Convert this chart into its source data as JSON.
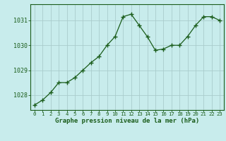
{
  "x": [
    0,
    1,
    2,
    3,
    4,
    5,
    6,
    7,
    8,
    9,
    10,
    11,
    12,
    13,
    14,
    15,
    16,
    17,
    18,
    19,
    20,
    21,
    22,
    23
  ],
  "y": [
    1027.6,
    1027.8,
    1028.1,
    1028.5,
    1028.5,
    1028.7,
    1029.0,
    1029.3,
    1029.55,
    1030.0,
    1030.35,
    1031.15,
    1031.25,
    1030.8,
    1030.35,
    1029.8,
    1029.85,
    1030.0,
    1030.0,
    1030.35,
    1030.8,
    1031.15,
    1031.15,
    1031.0
  ],
  "line_color": "#1a5c1a",
  "marker": "+",
  "marker_size": 4,
  "bg_color": "#c8ecec",
  "grid_color": "#aacccc",
  "xlabel": "Graphe pression niveau de la mer (hPa)",
  "xlabel_color": "#1a5c1a",
  "tick_color": "#1a5c1a",
  "ylim": [
    1027.4,
    1031.65
  ],
  "yticks": [
    1028,
    1029,
    1030,
    1031
  ],
  "xlim": [
    -0.5,
    23.5
  ],
  "xticks": [
    0,
    1,
    2,
    3,
    4,
    5,
    6,
    7,
    8,
    9,
    10,
    11,
    12,
    13,
    14,
    15,
    16,
    17,
    18,
    19,
    20,
    21,
    22,
    23
  ],
  "border_color": "#1a5c1a",
  "tick_fontsize": 5.2,
  "ytick_fontsize": 6.0,
  "xlabel_fontsize": 6.5,
  "linewidth": 0.9
}
